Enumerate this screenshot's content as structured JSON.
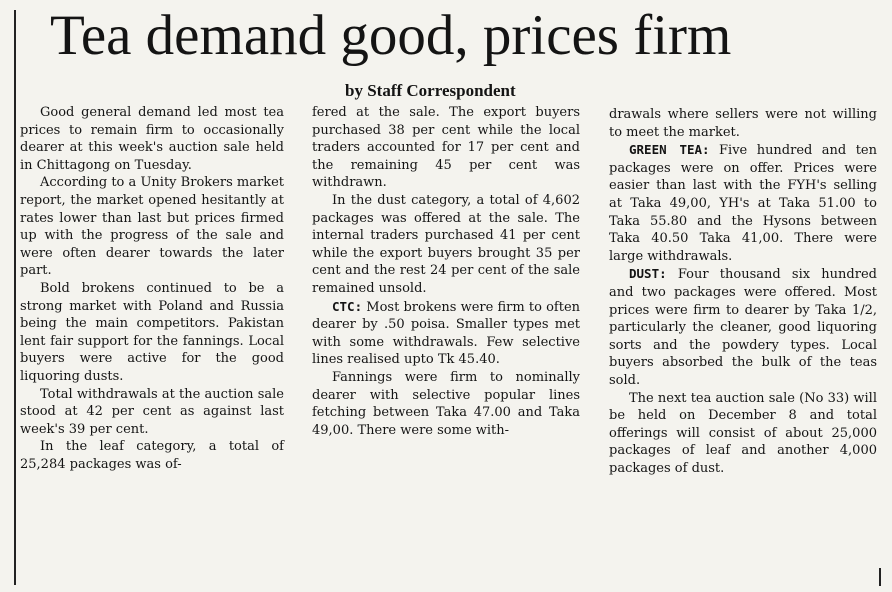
{
  "headline": "Tea demand good, prices firm",
  "byline": "by Staff Correspondent",
  "column1": [
    "Good general demand led most tea prices to remain firm to occasionally dearer at this week's auction sale held in Chittagong on Tuesday.",
    "According to a Unity Brokers market report, the market opened hesitantly at rates lower than last but prices firmed up with the progress of the sale and were often dearer towards the later part.",
    "Bold brokens continued to be a strong market with Poland and Russia being the main competitors. Pakistan lent fair support for the fannings. Local buyers were active for the good liquoring dusts.",
    "Total withdrawals at the auction sale stood at 42 per cent as against last week's 39 per cent.",
    "In the leaf category, a total of 25,284 packages was of-"
  ],
  "column2": [
    "fered at the sale. The export buyers purchased 38 per cent while the local traders accounted for 17 per cent and the remaining 45 per cent was withdrawn.",
    "In the dust category, a total of 4,602 packages was offered at the sale. The internal traders purchased 41 per cent while the export buyers brought 35 per cent and the rest 24 per cent of the sale remained unsold.",
    "Most brokens were firm to often dearer by .50 poisa. Smaller types met with some withdrawals. Few selective lines realised upto Tk 45.40.",
    "Fannings were firm to nominally dearer with selective popular lines fetching between Taka 47.00 and Taka 49,00. There were some with-"
  ],
  "column2_kw": "CTC:",
  "column3": [
    "drawals where sellers were not willing to meet the market.",
    "Five hundred and ten packages were on offer. Prices were easier than last with the FYH's selling at Taka 49,00, YH's at Taka 51.00 to Taka 55.80 and the Hysons between Taka 40.50 Taka 41,00. There were large withdrawals.",
    "Four thousand six hundred and two packages were offered. Most prices were firm to dearer by Taka 1/2, particularly the cleaner, good liquoring sorts and the powdery types. Local buyers absorbed the bulk of the teas sold.",
    "The next tea auction sale (No 33) will be held on December 8 and total offerings will consist of about 25,000 packages of leaf and another 4,000 packages of dust."
  ],
  "column3_kw1": "GREEN TEA:",
  "column3_kw2": "DUST:"
}
